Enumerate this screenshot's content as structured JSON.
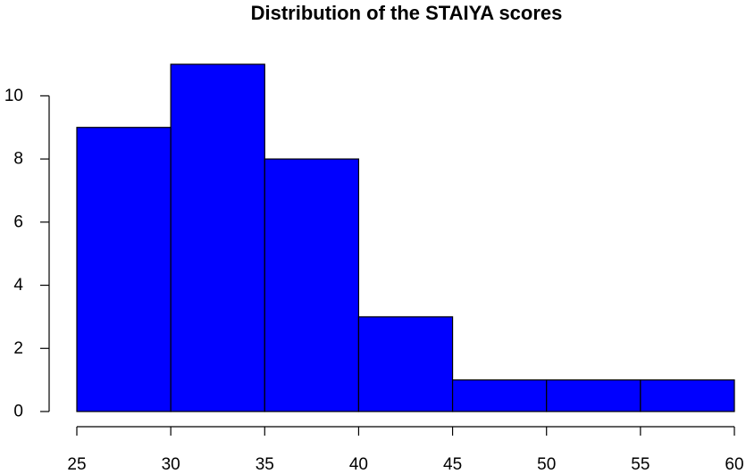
{
  "chart_data": {
    "type": "bar",
    "title": "Distribution of the STAIYA scores",
    "xlabel": "",
    "ylabel": "",
    "bins": [
      {
        "from": 25,
        "to": 30,
        "count": 9
      },
      {
        "from": 30,
        "to": 35,
        "count": 11
      },
      {
        "from": 35,
        "to": 40,
        "count": 8
      },
      {
        "from": 40,
        "to": 45,
        "count": 3
      },
      {
        "from": 45,
        "to": 50,
        "count": 1
      },
      {
        "from": 50,
        "to": 55,
        "count": 1
      },
      {
        "from": 55,
        "to": 60,
        "count": 1
      }
    ],
    "xlim": [
      25,
      60
    ],
    "ylim": [
      0,
      11
    ],
    "x_ticks": [
      "25",
      "30",
      "35",
      "40",
      "45",
      "50",
      "55",
      "60"
    ],
    "y_ticks": [
      "0",
      "2",
      "4",
      "6",
      "8",
      "10"
    ],
    "bar_color": "#0000ff",
    "grid": false
  }
}
